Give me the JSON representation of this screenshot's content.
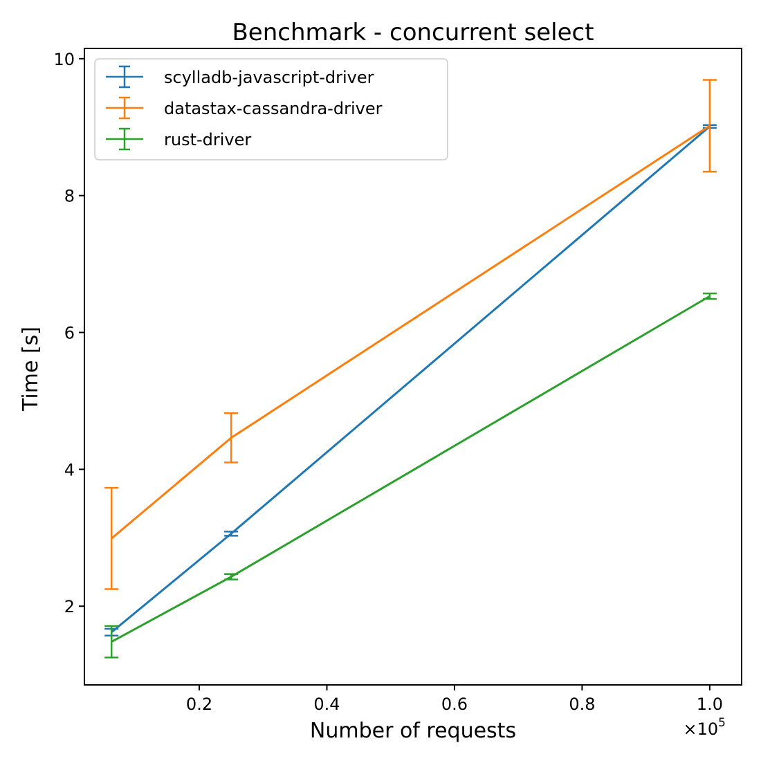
{
  "chart_data": {
    "type": "line",
    "title": "Benchmark - concurrent select",
    "xlabel": "Number of requests",
    "ylabel": "Time [s]",
    "x_offset_label": "×10",
    "x_offset_exponent": "5",
    "xlim": [
      2000,
      105000
    ],
    "ylim": [
      0.85,
      10.15
    ],
    "x_ticks": [
      20000,
      40000,
      60000,
      80000,
      100000
    ],
    "x_tick_labels": [
      "0.2",
      "0.4",
      "0.6",
      "0.8",
      "1.0"
    ],
    "y_ticks": [
      2,
      4,
      6,
      8,
      10
    ],
    "y_tick_labels": [
      "2",
      "4",
      "6",
      "8",
      "10"
    ],
    "grid": false,
    "legend_position": "upper left",
    "x": [
      6250,
      25000,
      100000
    ],
    "series": [
      {
        "name": "scylladb-javascript-driver",
        "color": "#1f77b4",
        "values": [
          1.62,
          3.06,
          9.01
        ],
        "errors": [
          0.05,
          0.03,
          0.02
        ]
      },
      {
        "name": "datastax-cassandra-driver",
        "color": "#ff7f0e",
        "values": [
          2.99,
          4.46,
          9.02
        ],
        "errors": [
          0.74,
          0.36,
          0.67
        ]
      },
      {
        "name": "rust-driver",
        "color": "#2ca02c",
        "values": [
          1.48,
          2.43,
          6.53
        ],
        "errors": [
          0.23,
          0.04,
          0.04
        ]
      }
    ]
  }
}
